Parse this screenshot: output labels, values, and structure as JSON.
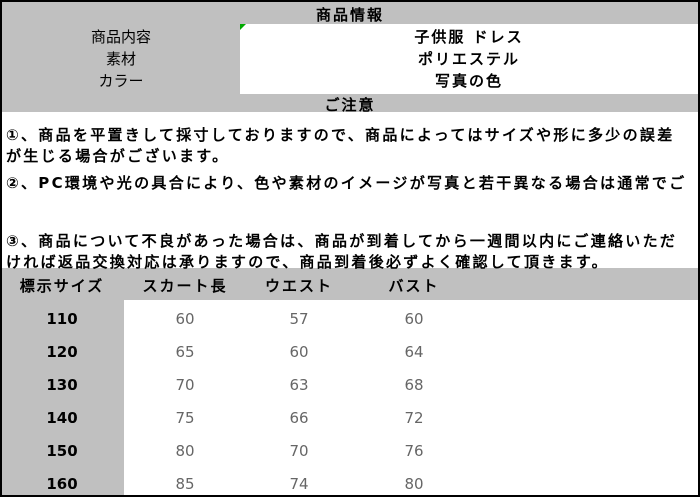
{
  "info": {
    "title": "商品情報",
    "rows": [
      [
        "商品内容",
        "子供服 ドレス"
      ],
      [
        "素材",
        "ポリエステル"
      ],
      [
        "カラー",
        "写真の色"
      ]
    ]
  },
  "notes": {
    "title": "ご注意",
    "items": [
      [
        "①、商品を平置きして採寸しておりますので、商品によってはサイズや形に多少の誤差",
        "が生じる場合がございます。"
      ],
      [
        "②、PC環境や光の具合により、色や素材のイメージが写真と若干異なる場合は通常でご"
      ],
      [
        "③、商品について不良があった場合は、商品が到着してから一週間以内にご連絡いただ",
        "ければ返品交換対応は承りますので、商品到着後必ずよく確認して頂きます。"
      ]
    ]
  },
  "size_table": {
    "header": [
      "標示サイズ",
      "スカート長",
      "ウエスト",
      "バスト"
    ],
    "rows": [
      [
        "110",
        "60",
        "57",
        "60"
      ],
      [
        "120",
        "65",
        "60",
        "64"
      ],
      [
        "130",
        "70",
        "63",
        "68"
      ],
      [
        "140",
        "75",
        "66",
        "72"
      ],
      [
        "150",
        "80",
        "70",
        "76"
      ],
      [
        "160",
        "85",
        "74",
        "80"
      ]
    ]
  }
}
